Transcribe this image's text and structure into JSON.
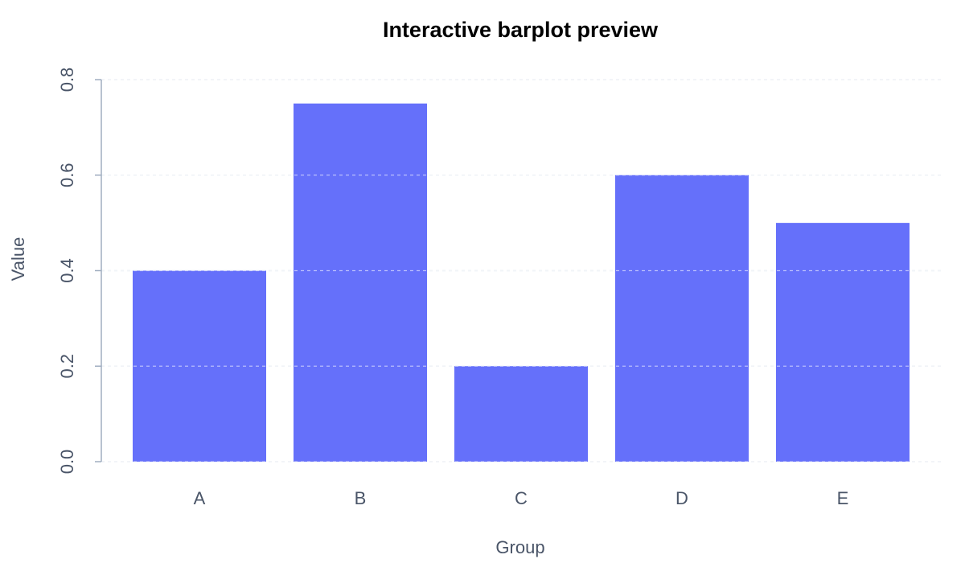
{
  "chart_data": {
    "type": "bar",
    "title": "Interactive barplot preview",
    "xlabel": "Group",
    "ylabel": "Value",
    "categories": [
      "A",
      "B",
      "C",
      "D",
      "E"
    ],
    "values": [
      0.4,
      0.75,
      0.2,
      0.6,
      0.5
    ],
    "ylim": [
      0,
      0.8
    ],
    "yticks": [
      0.0,
      0.2,
      0.4,
      0.6,
      0.8
    ],
    "ytick_labels": [
      "0.0",
      "0.2",
      "0.4",
      "0.6",
      "0.8"
    ],
    "grid": true,
    "bar_color": "#6570fa",
    "grid_color": "#e2e8f0",
    "axis_color": "#a0aec0",
    "text_color": "#4a5568"
  }
}
